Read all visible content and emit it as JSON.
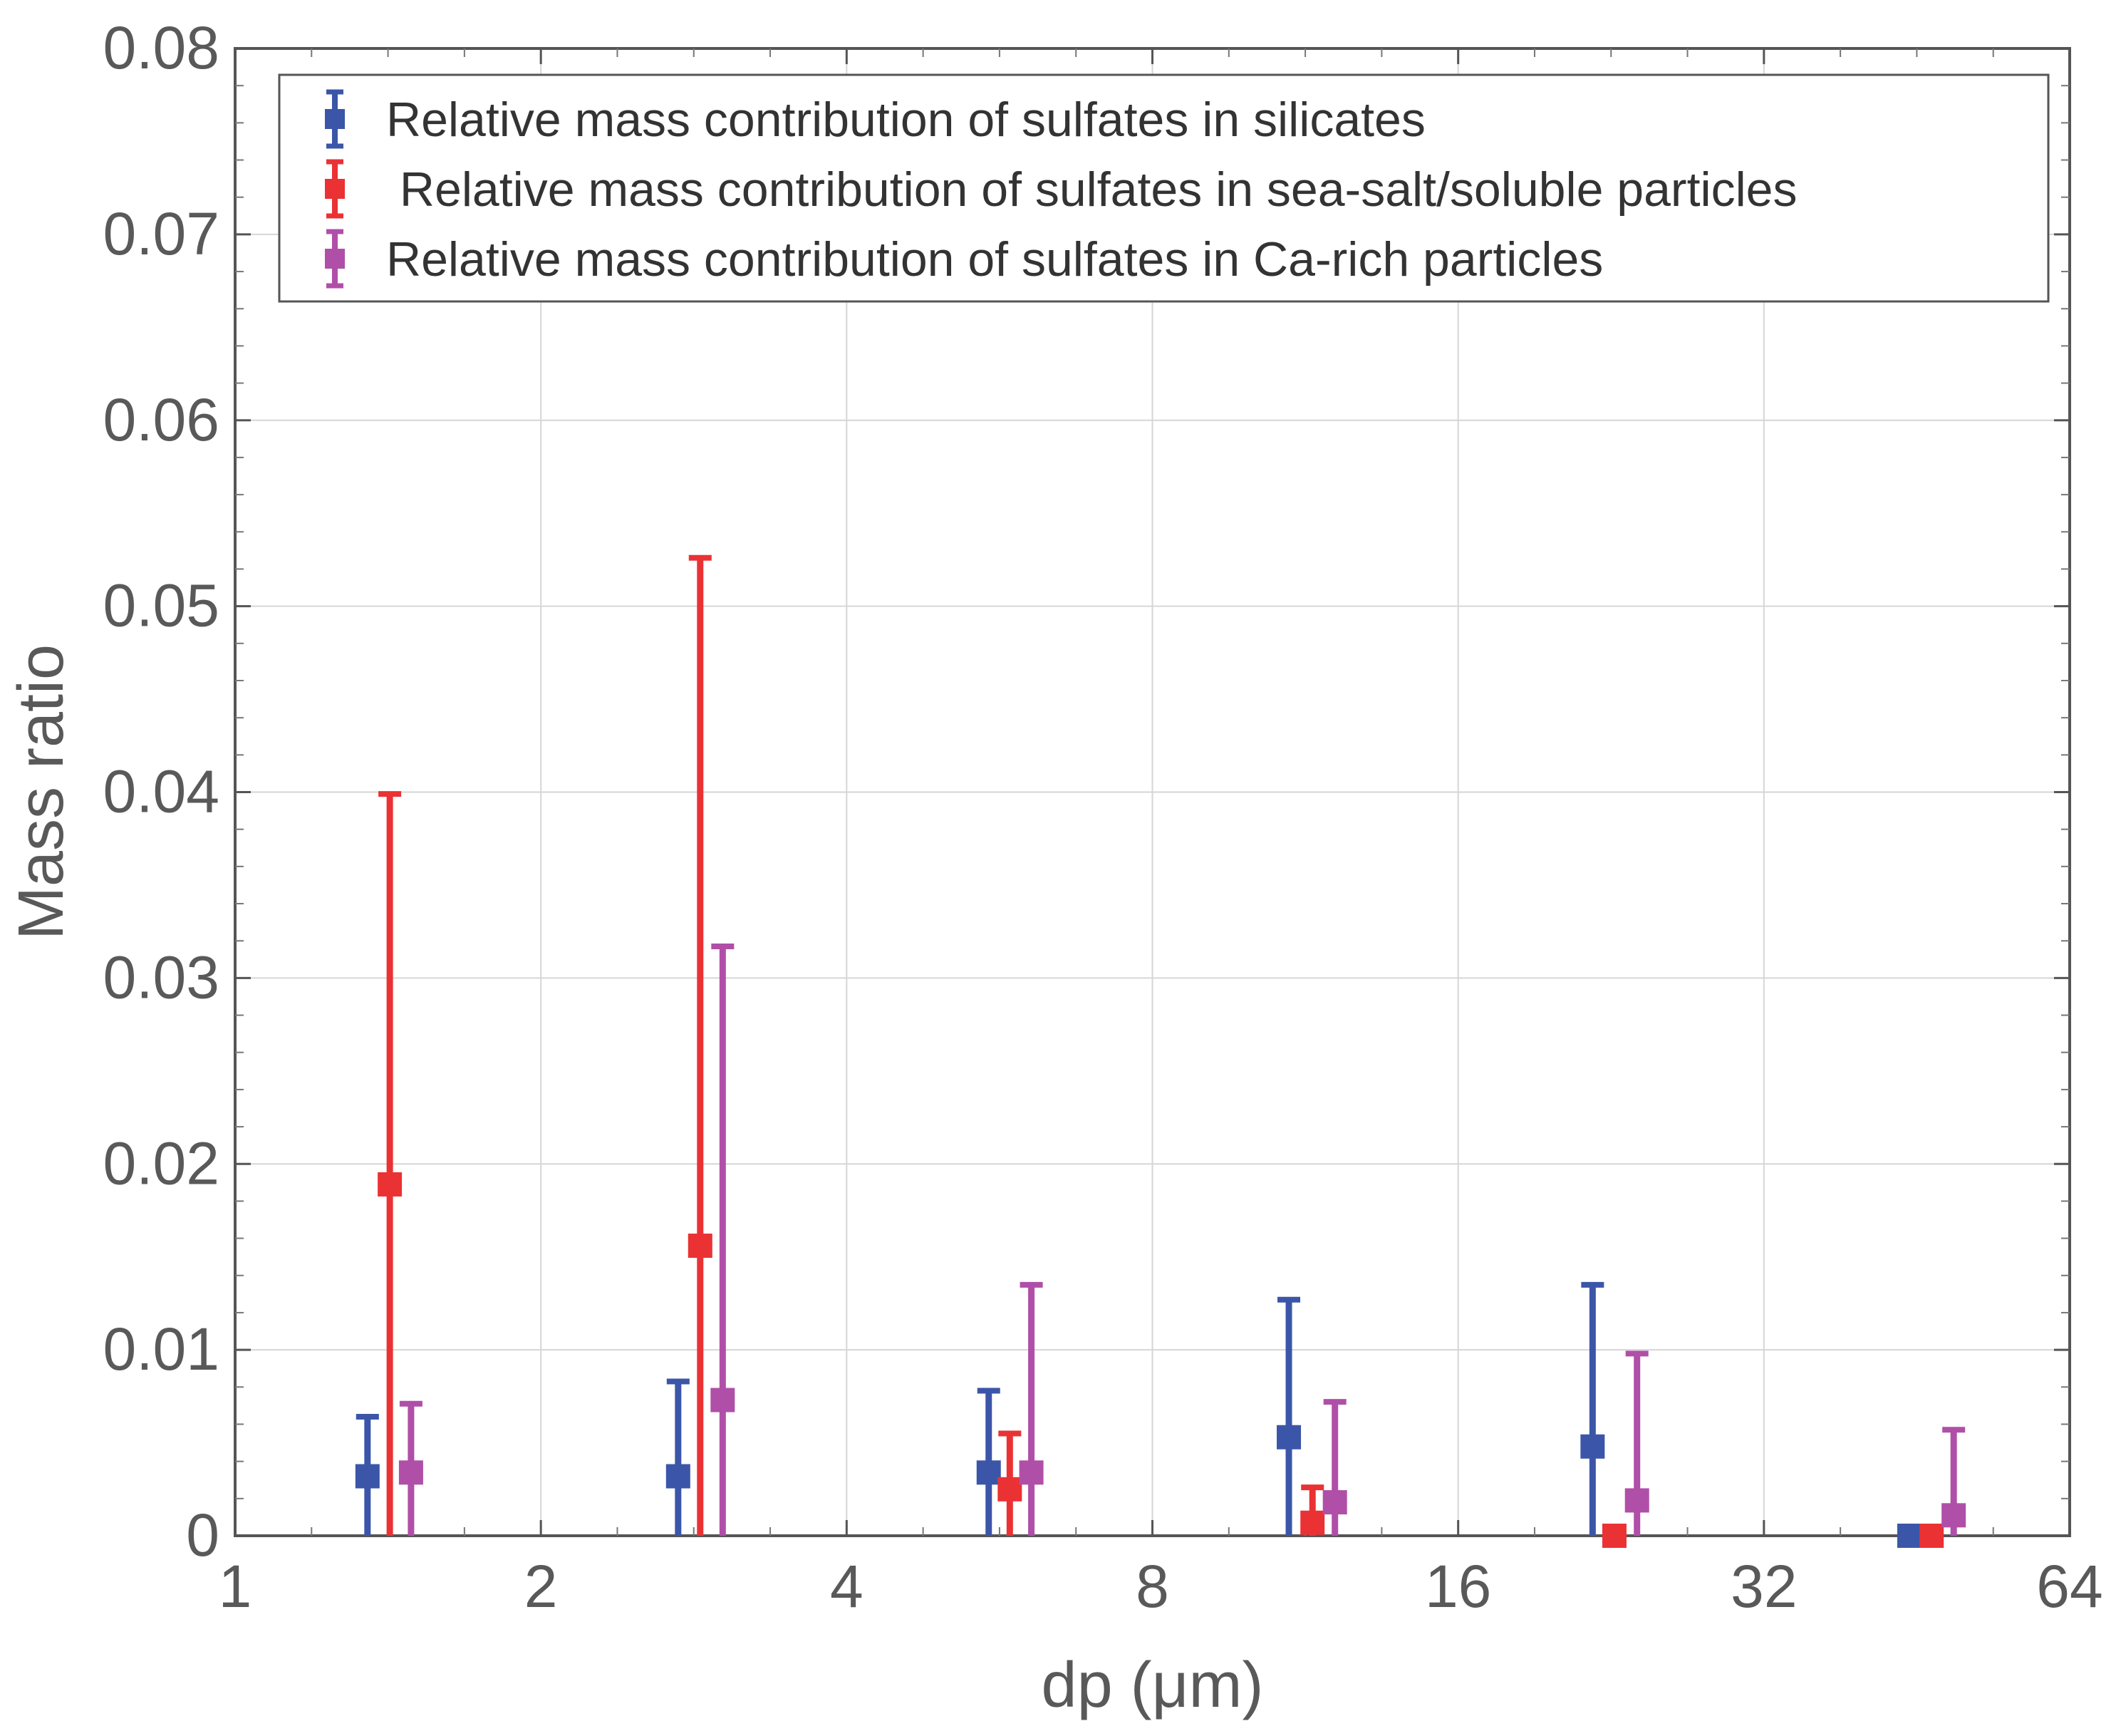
{
  "chart_data": {
    "type": "errorbar-scatter",
    "xlabel": "dp (μm)",
    "ylabel": "Mass ratio",
    "xscale": "log2",
    "xlim": [
      1,
      64
    ],
    "ylim": [
      0,
      0.08
    ],
    "grid": true,
    "legend_position": "top",
    "x_ticks": [
      1,
      2,
      4,
      8,
      16,
      32,
      64
    ],
    "x_tick_labels": [
      "1",
      "2",
      "4",
      "8",
      "16",
      "32",
      "64"
    ],
    "y_ticks": [
      0,
      0.01,
      0.02,
      0.03,
      0.04,
      0.05,
      0.06,
      0.07,
      0.08
    ],
    "y_tick_labels": [
      "0",
      "0.01",
      "0.02",
      "0.03",
      "0.04",
      "0.05",
      "0.06",
      "0.07",
      "0.08"
    ],
    "series": [
      {
        "name": "Relative mass contribution of sulfates in silicates",
        "color": "#3b56a8",
        "x": [
          1.35,
          2.73,
          5.52,
          10.9,
          21.7,
          44.5
        ],
        "y": [
          0.0032,
          0.0032,
          0.0034,
          0.0053,
          0.0048,
          0.0
        ],
        "yerr_upper": [
          0.0064,
          0.0083,
          0.0078,
          0.0127,
          0.0135,
          0.0
        ]
      },
      {
        "name": " Relative mass contribution of sulfates in sea-salt/soluble particles",
        "color": "#ea3234",
        "x": [
          1.42,
          2.87,
          5.79,
          11.5,
          22.8,
          46.8
        ],
        "y": [
          0.0189,
          0.0156,
          0.0025,
          0.0007,
          0.0,
          0.0
        ],
        "yerr_upper": [
          0.0399,
          0.0526,
          0.0055,
          0.0026,
          0.0,
          0.0
        ]
      },
      {
        "name": "Relative mass contribution of sulfates in Ca-rich particles",
        "color": "#b04fa8",
        "x": [
          1.49,
          3.02,
          6.08,
          12.1,
          24.0,
          49.2
        ],
        "y": [
          0.0034,
          0.0073,
          0.0034,
          0.0018,
          0.0019,
          0.0011
        ],
        "yerr_upper": [
          0.0071,
          0.0317,
          0.0135,
          0.0072,
          0.0098,
          0.0057
        ]
      }
    ]
  }
}
